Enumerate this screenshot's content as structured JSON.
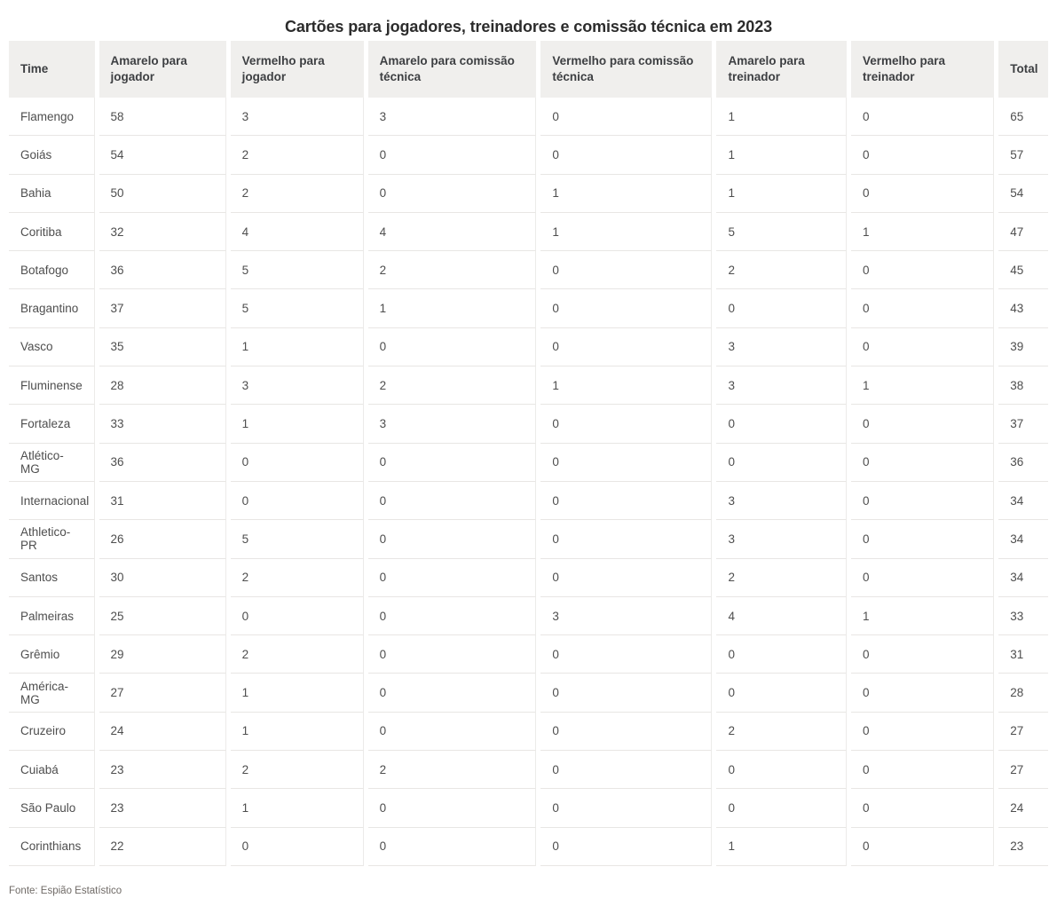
{
  "chart_data": {
    "type": "table",
    "title": "Cartões para jogadores, treinadores e comissão técnica em 2023",
    "columns": [
      "Time",
      "Amarelo para jogador",
      "Vermelho para jogador",
      "Amarelo para comissão técnica",
      "Vermelho para comissão técnica",
      "Amarelo para treinador",
      "Vermelho para treinador",
      "Total"
    ],
    "rows": [
      [
        "Flamengo",
        58,
        3,
        3,
        0,
        1,
        0,
        65
      ],
      [
        "Goiás",
        54,
        2,
        0,
        0,
        1,
        0,
        57
      ],
      [
        "Bahia",
        50,
        2,
        0,
        1,
        1,
        0,
        54
      ],
      [
        "Coritiba",
        32,
        4,
        4,
        1,
        5,
        1,
        47
      ],
      [
        "Botafogo",
        36,
        5,
        2,
        0,
        2,
        0,
        45
      ],
      [
        "Bragantino",
        37,
        5,
        1,
        0,
        0,
        0,
        43
      ],
      [
        "Vasco",
        35,
        1,
        0,
        0,
        3,
        0,
        39
      ],
      [
        "Fluminense",
        28,
        3,
        2,
        1,
        3,
        1,
        38
      ],
      [
        "Fortaleza",
        33,
        1,
        3,
        0,
        0,
        0,
        37
      ],
      [
        "Atlético-MG",
        36,
        0,
        0,
        0,
        0,
        0,
        36
      ],
      [
        "Internacional",
        31,
        0,
        0,
        0,
        3,
        0,
        34
      ],
      [
        "Athletico-PR",
        26,
        5,
        0,
        0,
        3,
        0,
        34
      ],
      [
        "Santos",
        30,
        2,
        0,
        0,
        2,
        0,
        34
      ],
      [
        "Palmeiras",
        25,
        0,
        0,
        3,
        4,
        1,
        33
      ],
      [
        "Grêmio",
        29,
        2,
        0,
        0,
        0,
        0,
        31
      ],
      [
        "América-MG",
        27,
        1,
        0,
        0,
        0,
        0,
        28
      ],
      [
        "Cruzeiro",
        24,
        1,
        0,
        0,
        2,
        0,
        27
      ],
      [
        "Cuiabá",
        23,
        2,
        2,
        0,
        0,
        0,
        27
      ],
      [
        "São Paulo",
        23,
        1,
        0,
        0,
        0,
        0,
        24
      ],
      [
        "Corinthians",
        22,
        0,
        0,
        0,
        1,
        0,
        23
      ]
    ],
    "source": "Fonte: Espião Estatístico",
    "layout": {
      "legend": "none",
      "grid": "row-and-column-separators",
      "header_background": "#f0efed"
    }
  },
  "colors": {
    "header_bg": "#f0efed",
    "border": "#e8e6e4",
    "title_text": "#2c2c2c",
    "header_text": "#3d3f42",
    "cell_text": "#4e4e4e",
    "source_text": "#6f6a66"
  }
}
